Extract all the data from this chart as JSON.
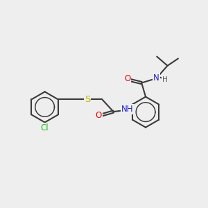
{
  "bg_color": "#eeeeee",
  "bond_color": "#3a3a3a",
  "bond_width": 1.5,
  "atom_colors": {
    "O": "#ee0000",
    "N": "#2222cc",
    "S": "#bbbb00",
    "Cl": "#22bb22",
    "H": "#555566",
    "C": "#3a3a3a"
  },
  "font_size": 8.5,
  "fig_size": [
    3.0,
    3.0
  ],
  "dpi": 100
}
